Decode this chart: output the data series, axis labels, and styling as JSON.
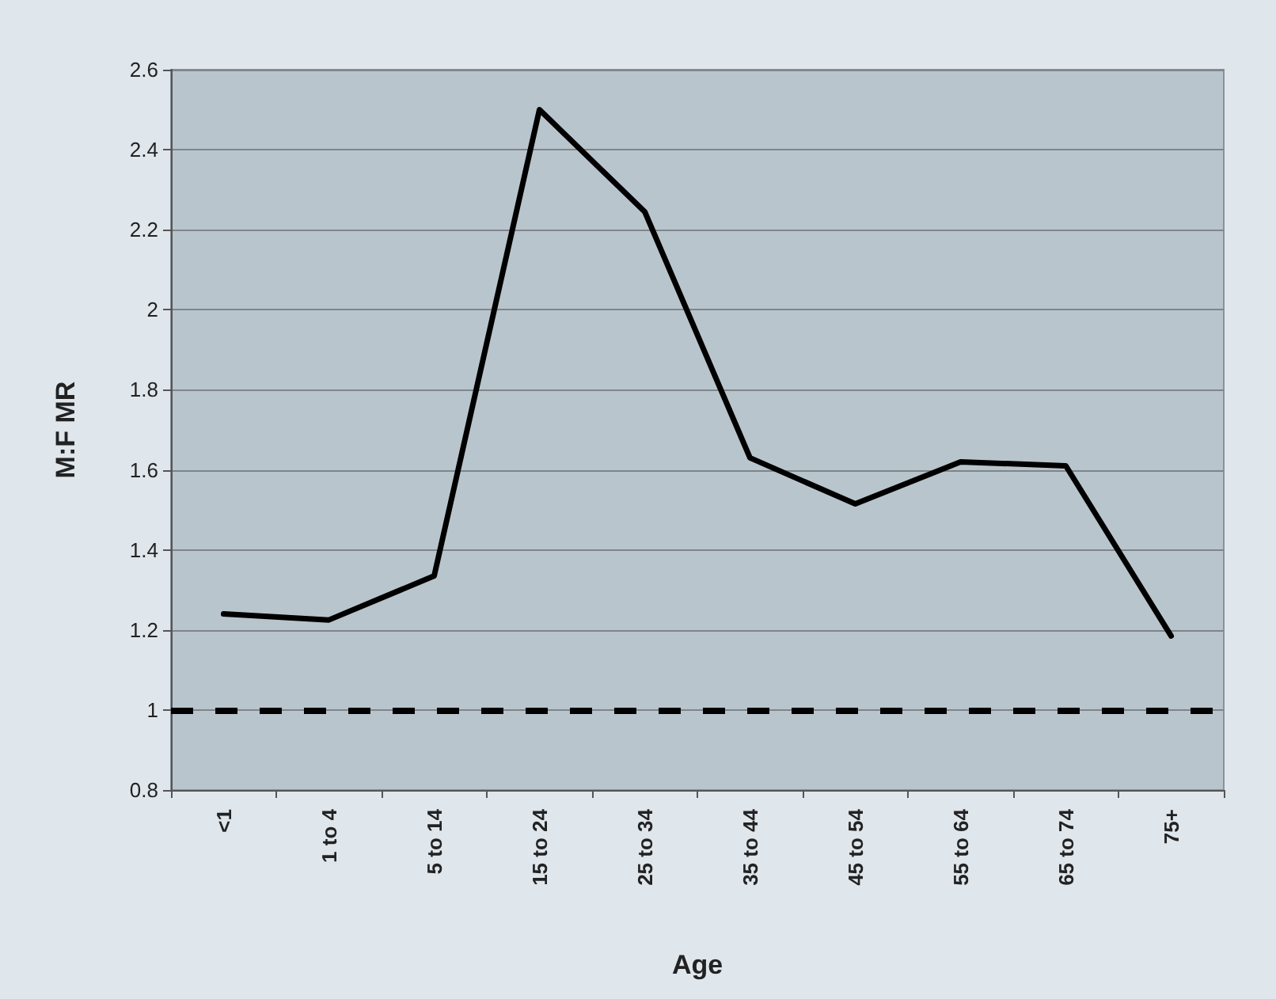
{
  "chart_data": {
    "type": "line",
    "xlabel": "Age",
    "ylabel": "M:F MR",
    "categories": [
      "<1",
      "1 to 4",
      "5 to 14",
      "15 to 24",
      "25 to 34",
      "35 to 44",
      "45 to 54",
      "55 to 64",
      "65 to 74",
      "75+"
    ],
    "series": [
      {
        "color": "#000000",
        "values": [
          1.24,
          1.225,
          1.335,
          2.5,
          2.245,
          1.63,
          1.515,
          1.62,
          1.61,
          1.185
        ]
      }
    ],
    "ylim": [
      0.8,
      2.6
    ],
    "yticks": [
      0.8,
      1,
      1.2,
      1.4,
      1.6,
      1.8,
      2,
      2.2,
      2.4,
      2.6
    ],
    "ref_lines": [
      {
        "axis": "y",
        "value": 1,
        "color": "#000000",
        "line_style": "dashed"
      }
    ],
    "grid": "y",
    "marker": "none",
    "line_style": "solid"
  }
}
